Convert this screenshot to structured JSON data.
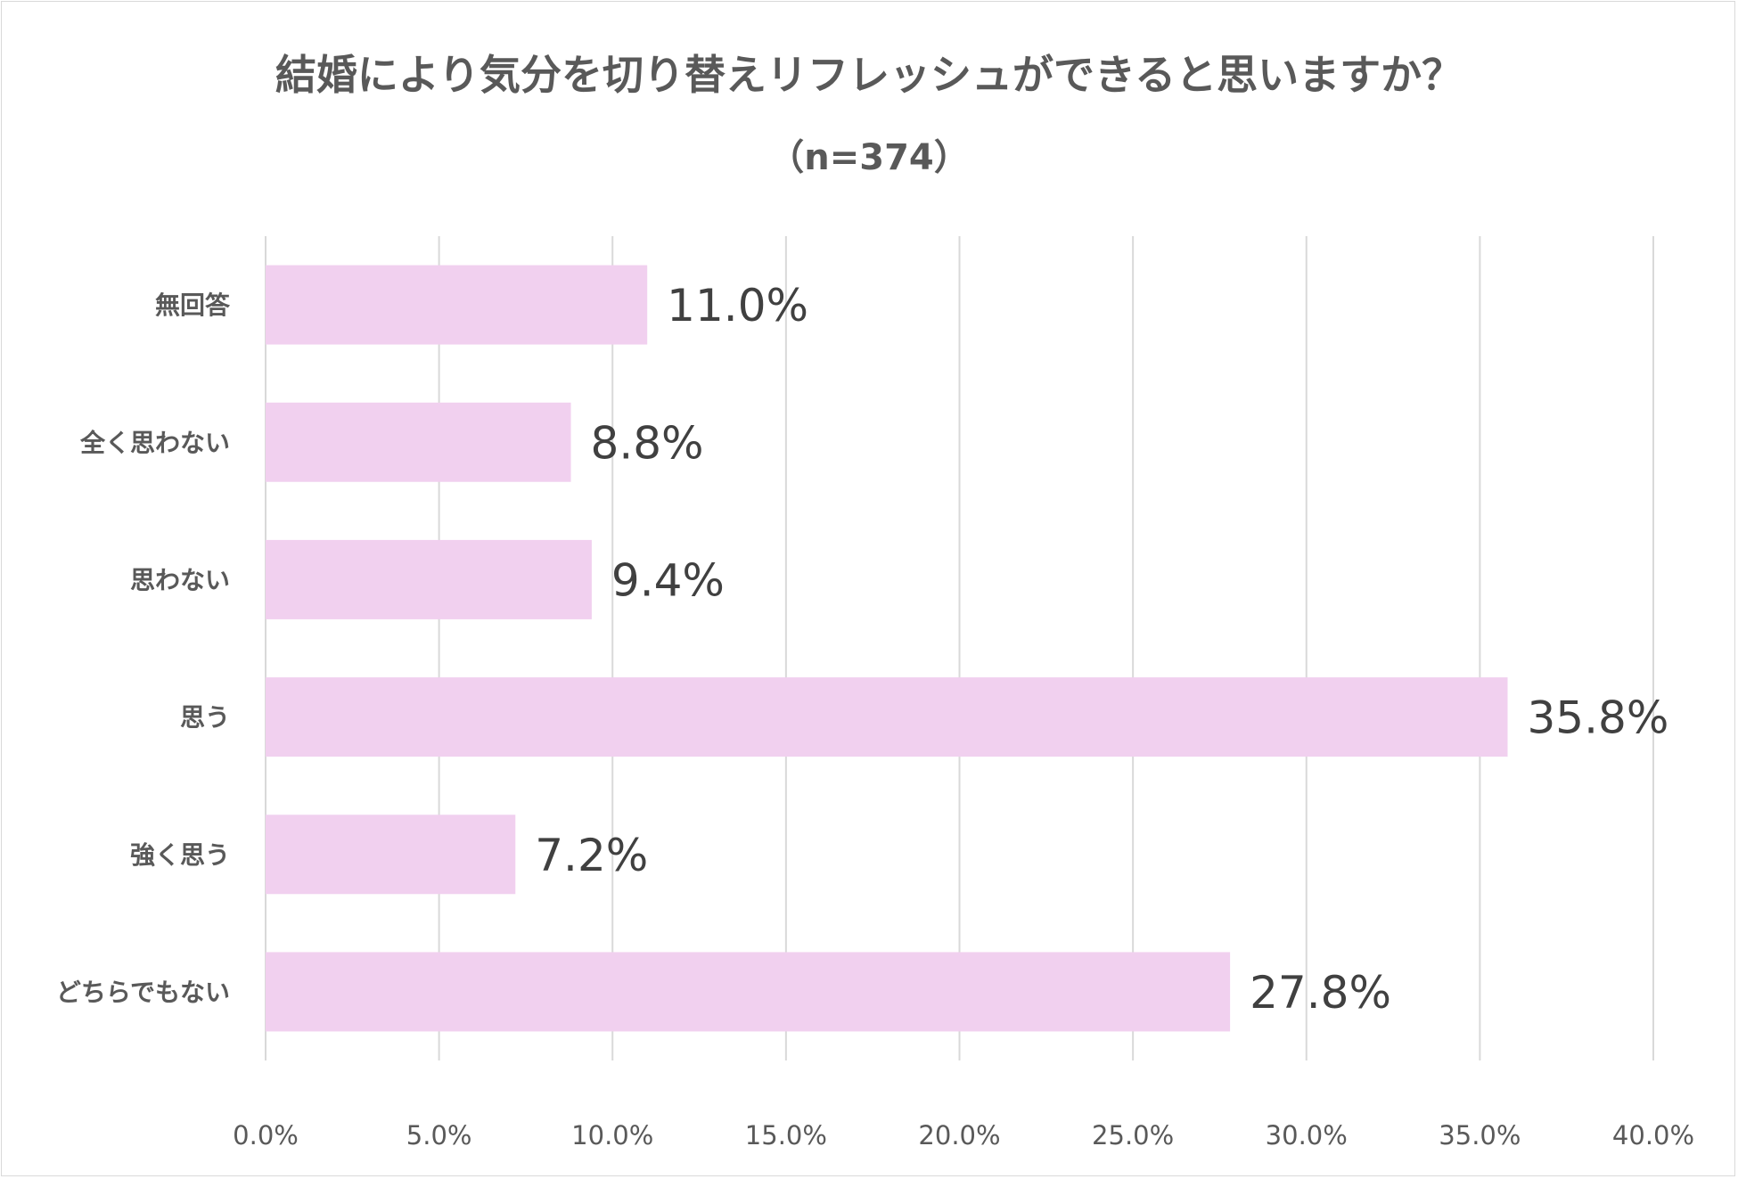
{
  "title": "結婚により気分を切り替えリフレッシュができると思いますか？",
  "subtitle": "（n=374）",
  "colors": {
    "bar": "#f1d0ef",
    "grid": "#d9d9d9",
    "text": "#595959",
    "value_text": "#404040"
  },
  "chart_data": {
    "type": "bar",
    "orientation": "horizontal",
    "title": "結婚により気分を切り替えリフレッシュができると思いますか？",
    "subtitle": "（n=374）",
    "categories": [
      "無回答",
      "全く思わない",
      "思わない",
      "思う",
      "強く思う",
      "どちらでもない"
    ],
    "values": [
      11.0,
      8.8,
      9.4,
      35.8,
      7.2,
      27.8
    ],
    "value_labels": [
      "11.0%",
      "8.8%",
      "9.4%",
      "35.8%",
      "7.2%",
      "27.8%"
    ],
    "xlim": [
      0,
      40
    ],
    "x_ticks": [
      0,
      5,
      10,
      15,
      20,
      25,
      30,
      35,
      40
    ],
    "x_tick_labels": [
      "0.0%",
      "5.0%",
      "10.0%",
      "15.0%",
      "20.0%",
      "25.0%",
      "30.0%",
      "35.0%",
      "40.0%"
    ],
    "grid": "vertical",
    "legend": "none"
  }
}
